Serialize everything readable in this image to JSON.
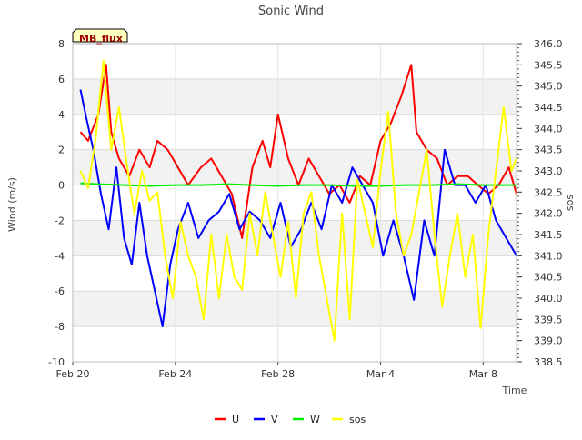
{
  "chart_data": {
    "type": "line",
    "title": "Sonic Wind",
    "site_label": "MB_flux",
    "xlabel": "Time",
    "ylabel": "Wind (m/s)",
    "y2label": "sos",
    "x_unit": "days since Feb 20",
    "xlim": [
      0,
      17.3
    ],
    "ylim": [
      -10,
      8
    ],
    "y2lim": [
      338.5,
      346.0
    ],
    "x_ticks": [
      {
        "value": 0,
        "label": "Feb 20"
      },
      {
        "value": 4,
        "label": "Feb 24"
      },
      {
        "value": 8,
        "label": "Feb 28"
      },
      {
        "value": 12,
        "label": "Mar 4"
      },
      {
        "value": 16,
        "label": "Mar 8"
      }
    ],
    "y_ticks": [
      -10,
      -8,
      -6,
      -4,
      -2,
      0,
      2,
      4,
      6,
      8
    ],
    "y2_ticks": [
      "338.5",
      "339.0",
      "339.5",
      "340.0",
      "340.5",
      "341.0",
      "341.5",
      "342.0",
      "342.5",
      "343.0",
      "343.5",
      "344.0",
      "344.5",
      "345.0",
      "345.5",
      "346.0"
    ],
    "grid": true,
    "legend_position": "bottom",
    "series": [
      {
        "name": "U",
        "color": "#ff0000",
        "axis": "left",
        "x": [
          0.3,
          0.6,
          1.0,
          1.3,
          1.5,
          1.8,
          2.2,
          2.6,
          3.0,
          3.3,
          3.7,
          4.1,
          4.5,
          5.0,
          5.4,
          5.8,
          6.2,
          6.6,
          7.0,
          7.4,
          7.7,
          8.0,
          8.4,
          8.8,
          9.2,
          9.6,
          10.0,
          10.4,
          10.8,
          11.2,
          11.6,
          12.0,
          12.4,
          12.8,
          13.2,
          13.4,
          13.8,
          14.2,
          14.6,
          15.0,
          15.4,
          15.8,
          16.2,
          16.6,
          17.0,
          17.3
        ],
        "values": [
          3.0,
          2.5,
          4.0,
          6.8,
          3.0,
          1.5,
          0.5,
          2.0,
          1.0,
          2.5,
          2.0,
          1.0,
          0.0,
          1.0,
          1.5,
          0.5,
          -0.5,
          -3.0,
          1.0,
          2.5,
          1.0,
          4.0,
          1.5,
          0.0,
          1.5,
          0.5,
          -0.5,
          0.0,
          -1.0,
          0.5,
          0.0,
          2.5,
          3.5,
          5.0,
          6.8,
          3.0,
          2.0,
          1.5,
          0.0,
          0.5,
          0.5,
          0.0,
          -0.5,
          0.0,
          1.0,
          -0.5
        ]
      },
      {
        "name": "V",
        "color": "#0000ff",
        "axis": "left",
        "x": [
          0.3,
          0.5,
          0.8,
          1.1,
          1.4,
          1.7,
          2.0,
          2.3,
          2.6,
          2.9,
          3.2,
          3.5,
          3.8,
          4.1,
          4.5,
          4.9,
          5.3,
          5.7,
          6.1,
          6.5,
          6.9,
          7.3,
          7.7,
          8.1,
          8.5,
          8.9,
          9.3,
          9.7,
          10.1,
          10.5,
          10.9,
          11.3,
          11.7,
          12.1,
          12.5,
          12.9,
          13.3,
          13.7,
          14.1,
          14.5,
          14.9,
          15.3,
          15.7,
          16.1,
          16.5,
          16.9,
          17.3
        ],
        "values": [
          5.4,
          4.0,
          2.0,
          -0.5,
          -2.5,
          1.0,
          -3.0,
          -4.5,
          -1.0,
          -4.0,
          -6.0,
          -8.0,
          -4.5,
          -2.5,
          -1.0,
          -3.0,
          -2.0,
          -1.5,
          -0.5,
          -2.5,
          -1.5,
          -2.0,
          -3.0,
          -1.0,
          -3.5,
          -2.5,
          -1.0,
          -2.5,
          0.0,
          -1.0,
          1.0,
          0.0,
          -1.0,
          -4.0,
          -2.0,
          -4.0,
          -6.5,
          -2.0,
          -4.0,
          2.0,
          0.0,
          0.0,
          -1.0,
          0.0,
          -2.0,
          -3.0,
          -4.0
        ]
      },
      {
        "name": "W",
        "color": "#00ee00",
        "axis": "left",
        "x": [
          0.3,
          1.0,
          2.0,
          3.0,
          4.0,
          5.0,
          6.0,
          7.0,
          8.0,
          9.0,
          10.0,
          11.0,
          12.0,
          13.0,
          14.0,
          15.0,
          16.0,
          17.3
        ],
        "values": [
          0.1,
          0.05,
          0.0,
          -0.05,
          0.0,
          0.0,
          0.05,
          0.0,
          -0.05,
          0.0,
          0.0,
          -0.05,
          -0.05,
          0.0,
          0.0,
          0.05,
          0.0,
          0.0
        ]
      },
      {
        "name": "sos",
        "color": "#ffff00",
        "axis": "right",
        "x": [
          0.3,
          0.6,
          0.9,
          1.2,
          1.5,
          1.8,
          2.1,
          2.4,
          2.7,
          3.0,
          3.3,
          3.6,
          3.9,
          4.2,
          4.5,
          4.8,
          5.1,
          5.4,
          5.7,
          6.0,
          6.3,
          6.6,
          6.9,
          7.2,
          7.5,
          7.8,
          8.1,
          8.4,
          8.7,
          9.0,
          9.3,
          9.6,
          9.9,
          10.2,
          10.5,
          10.8,
          11.1,
          11.4,
          11.7,
          12.0,
          12.3,
          12.6,
          12.9,
          13.2,
          13.5,
          13.8,
          14.1,
          14.4,
          14.7,
          15.0,
          15.3,
          15.6,
          15.9,
          16.2,
          16.5,
          16.8,
          17.1,
          17.3
        ],
        "values": [
          343.0,
          342.6,
          343.8,
          345.6,
          343.5,
          344.5,
          343.2,
          342.0,
          343.0,
          342.3,
          342.5,
          341.0,
          340.0,
          341.8,
          341.0,
          340.5,
          339.5,
          341.5,
          340.0,
          341.5,
          340.5,
          340.2,
          342.0,
          341.0,
          342.5,
          341.5,
          340.5,
          341.8,
          340.0,
          342.0,
          342.5,
          341.0,
          340.0,
          339.0,
          342.0,
          339.5,
          342.8,
          342.0,
          341.2,
          343.0,
          344.4,
          342.0,
          341.0,
          341.5,
          342.5,
          343.5,
          341.5,
          339.8,
          341.0,
          342.0,
          340.5,
          341.5,
          339.3,
          341.5,
          343.0,
          344.5,
          343.0,
          343.3
        ]
      }
    ]
  }
}
